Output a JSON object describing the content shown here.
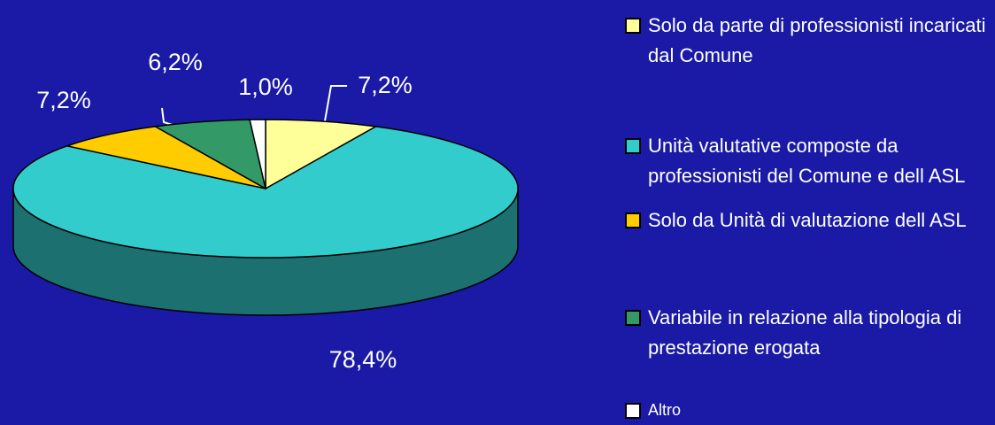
{
  "chart_data": {
    "type": "pie",
    "categories": [
      "Solo da parte di professionisti incaricati dal Comune",
      "Unità valutative composte da professionisti del Comune e dell ASL",
      "Solo da Unità di valutazione dell ASL",
      "Variabile in relazione alla tipologia di prestazione erogata",
      "Altro"
    ],
    "values": [
      7.2,
      78.4,
      7.2,
      6.2,
      1.0
    ],
    "value_labels": [
      "7,2%",
      "78,4%",
      "7,2%",
      "6,2%",
      "1,0%"
    ],
    "colors": [
      "#ffff99",
      "#33cccc",
      "#ffcc00",
      "#339966",
      "#ffffff"
    ],
    "legend": "right"
  }
}
